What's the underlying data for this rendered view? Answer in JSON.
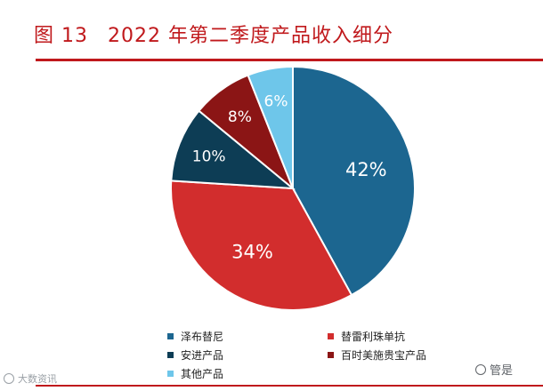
{
  "figure": {
    "number": "图 13",
    "title": "2022 年第二季度产品收入细分"
  },
  "chart_data": {
    "type": "pie",
    "title": "2022 年第二季度产品收入细分",
    "slices": [
      {
        "label": "泽布替尼",
        "value": 42,
        "display": "42%",
        "color": "#1c6690"
      },
      {
        "label": "替雷利珠单抗",
        "value": 34,
        "display": "34%",
        "color": "#d22d2d"
      },
      {
        "label": "安进产品",
        "value": 10,
        "display": "10%",
        "color": "#0d3d55"
      },
      {
        "label": "百时美施贵宝产品",
        "value": 8,
        "display": "8%",
        "color": "#8b1515"
      },
      {
        "label": "其他产品",
        "value": 6,
        "display": "6%",
        "color": "#6ec6ea"
      }
    ],
    "legend_position": "bottom"
  },
  "watermark": {
    "left": "大数资讯",
    "right": "管是"
  }
}
